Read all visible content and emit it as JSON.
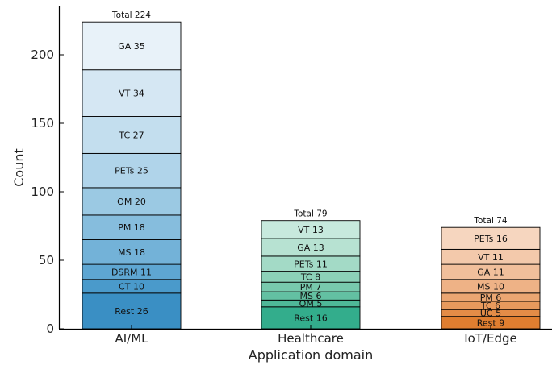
{
  "chart_data": {
    "type": "bar",
    "stacked": true,
    "xlabel": "Application domain",
    "ylabel": "Count",
    "ylim": [
      0,
      236
    ],
    "yticks": [
      0,
      50,
      100,
      150,
      200
    ],
    "categories": [
      "AI/ML",
      "Healthcare",
      "IoT/Edge"
    ],
    "stacks": [
      {
        "category": "AI/ML",
        "total_label": "Total 224",
        "segments": [
          {
            "label": "Rest 26",
            "value": 26,
            "color": "#3a8fc4"
          },
          {
            "label": "CT 10",
            "value": 10,
            "color": "#4a9acb"
          },
          {
            "label": "DSRM 11",
            "value": 11,
            "color": "#5ea6d2"
          },
          {
            "label": "MS 18",
            "value": 18,
            "color": "#73b2d8"
          },
          {
            "label": "PM 18",
            "value": 18,
            "color": "#86bddd"
          },
          {
            "label": "OM 20",
            "value": 20,
            "color": "#9bc9e3"
          },
          {
            "label": "PETs 25",
            "value": 25,
            "color": "#b0d4ea"
          },
          {
            "label": "TC 27",
            "value": 27,
            "color": "#c3deee"
          },
          {
            "label": "VT 34",
            "value": 34,
            "color": "#d5e7f3"
          },
          {
            "label": "GA 35",
            "value": 35,
            "color": "#e8f2f9"
          }
        ]
      },
      {
        "category": "Healthcare",
        "total_label": "Total 79",
        "segments": [
          {
            "label": "Rest 16",
            "value": 16,
            "color": "#33ad8c"
          },
          {
            "label": "OM 5",
            "value": 5,
            "color": "#4fb898"
          },
          {
            "label": "MS 6",
            "value": 6,
            "color": "#63c0a2"
          },
          {
            "label": "PM 7",
            "value": 7,
            "color": "#78c9ad"
          },
          {
            "label": "TC 8",
            "value": 8,
            "color": "#8cd1b8"
          },
          {
            "label": "PETs 11",
            "value": 11,
            "color": "#a3dac6"
          },
          {
            "label": "GA 13",
            "value": 13,
            "color": "#b7e2d2"
          },
          {
            "label": "VT 13",
            "value": 13,
            "color": "#c7e9dd"
          }
        ]
      },
      {
        "category": "IoT/Edge",
        "total_label": "Total 74",
        "segments": [
          {
            "label": "Rest 9",
            "value": 9,
            "color": "#e07e30"
          },
          {
            "label": "UC 5",
            "value": 5,
            "color": "#e48c47"
          },
          {
            "label": "TC 6",
            "value": 6,
            "color": "#e89a5d"
          },
          {
            "label": "PM 6",
            "value": 6,
            "color": "#eba672"
          },
          {
            "label": "MS 10",
            "value": 10,
            "color": "#eeb286"
          },
          {
            "label": "GA 11",
            "value": 11,
            "color": "#f1bf9b"
          },
          {
            "label": "VT 11",
            "value": 11,
            "color": "#f3c9ab"
          },
          {
            "label": "PETs 16",
            "value": 16,
            "color": "#f6d6bf"
          }
        ]
      }
    ]
  }
}
